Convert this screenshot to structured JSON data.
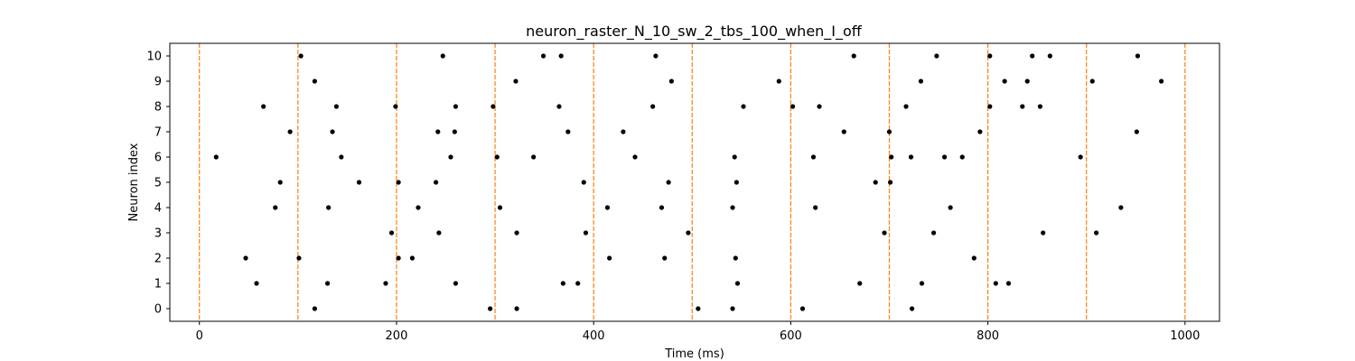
{
  "colors": {
    "spike": "#000000",
    "stim_line": "#ff7f0e",
    "axes": "#000000",
    "background": "#ffffff"
  },
  "chart_data": {
    "type": "scatter",
    "title": "neuron_raster_N_10_sw_2_tbs_100_when_I_off",
    "xlabel": "Time (ms)",
    "ylabel": "Neuron index",
    "xlim": [
      -30,
      1035
    ],
    "ylim": [
      -0.5,
      10.5
    ],
    "xticks": [
      0,
      200,
      400,
      600,
      800,
      1000
    ],
    "yticks": [
      0,
      1,
      2,
      3,
      4,
      5,
      6,
      7,
      8,
      9,
      10
    ],
    "grid": false,
    "stimulus_lines_x": [
      0,
      100,
      200,
      300,
      400,
      500,
      600,
      700,
      800,
      900,
      1000
    ],
    "series": [
      {
        "neuron": 10,
        "x": [
          103,
          247,
          349,
          367,
          463,
          664,
          748,
          802,
          845,
          863,
          952
        ]
      },
      {
        "neuron": 9,
        "x": [
          117,
          321,
          479,
          588,
          732,
          817,
          840,
          906,
          976
        ]
      },
      {
        "neuron": 8,
        "x": [
          65,
          139,
          199,
          260,
          298,
          365,
          460,
          552,
          602,
          629,
          717,
          802,
          835,
          853
        ]
      },
      {
        "neuron": 7,
        "x": [
          92,
          135,
          242,
          259,
          374,
          430,
          654,
          700,
          792,
          951
        ]
      },
      {
        "neuron": 6,
        "x": [
          17,
          144,
          255,
          302,
          339,
          442,
          543,
          623,
          702,
          722,
          756,
          774,
          894
        ]
      },
      {
        "neuron": 5,
        "x": [
          82,
          162,
          202,
          240,
          390,
          476,
          545,
          686,
          701
        ]
      },
      {
        "neuron": 4,
        "x": [
          77,
          131,
          222,
          305,
          414,
          469,
          541,
          625,
          762,
          935
        ]
      },
      {
        "neuron": 3,
        "x": [
          195,
          243,
          322,
          392,
          496,
          695,
          745,
          856,
          910
        ]
      },
      {
        "neuron": 2,
        "x": [
          47,
          101,
          202,
          216,
          416,
          472,
          544,
          786
        ]
      },
      {
        "neuron": 1,
        "x": [
          58,
          130,
          189,
          260,
          369,
          384,
          546,
          670,
          733,
          808,
          821
        ]
      },
      {
        "neuron": 0,
        "x": [
          117,
          295,
          322,
          506,
          541,
          612,
          723
        ]
      }
    ]
  }
}
